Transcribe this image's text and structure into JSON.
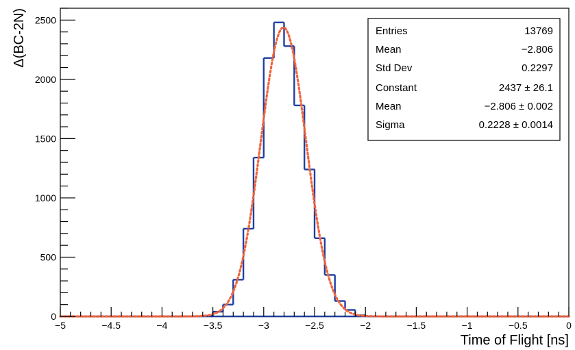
{
  "chart_data": {
    "type": "histogram",
    "xlabel": "Time of Flight [ns]",
    "ylabel": "Δ(BC-2N)",
    "xlim": [
      -5,
      0
    ],
    "ylim": [
      0,
      2600
    ],
    "x_ticks": [
      {
        "value": -5,
        "label": "−5"
      },
      {
        "value": -4.5,
        "label": "−4.5"
      },
      {
        "value": -4,
        "label": "−4"
      },
      {
        "value": -3.5,
        "label": "−3.5"
      },
      {
        "value": -3,
        "label": "−3"
      },
      {
        "value": -2.5,
        "label": "−2.5"
      },
      {
        "value": -2,
        "label": "−2"
      },
      {
        "value": -1.5,
        "label": "−1.5"
      },
      {
        "value": -1,
        "label": "−1"
      },
      {
        "value": -0.5,
        "label": "−0.5"
      },
      {
        "value": 0,
        "label": "0"
      }
    ],
    "y_ticks": [
      {
        "value": 0,
        "label": "0"
      },
      {
        "value": 500,
        "label": "500"
      },
      {
        "value": 1000,
        "label": "1000"
      },
      {
        "value": 1500,
        "label": "1500"
      },
      {
        "value": 2000,
        "label": "2000"
      },
      {
        "value": 2500,
        "label": "2500"
      }
    ],
    "bin_width": 0.1,
    "bin_edges_start": -3.6,
    "bin_values": [
      5,
      40,
      100,
      310,
      740,
      1340,
      2180,
      2480,
      2280,
      1780,
      1240,
      660,
      350,
      130,
      55,
      10
    ],
    "fit": {
      "type": "gaussian",
      "constant": 2437,
      "mean": -2.806,
      "sigma": 0.2228
    },
    "colors": {
      "histogram": "#1f3fa0",
      "fit": "#f0643c"
    },
    "stats_box": {
      "position": "top-right",
      "rows": [
        {
          "label": "Entries",
          "value": "13769"
        },
        {
          "label": "Mean",
          "value": "−2.806"
        },
        {
          "label": "Std Dev",
          "value": "0.2297"
        },
        {
          "label": "Constant",
          "value": "2437 ± 26.1"
        },
        {
          "label": "Mean",
          "value": "−2.806 ± 0.002"
        },
        {
          "label": "Sigma",
          "value": "0.2228 ± 0.0014"
        }
      ]
    }
  }
}
